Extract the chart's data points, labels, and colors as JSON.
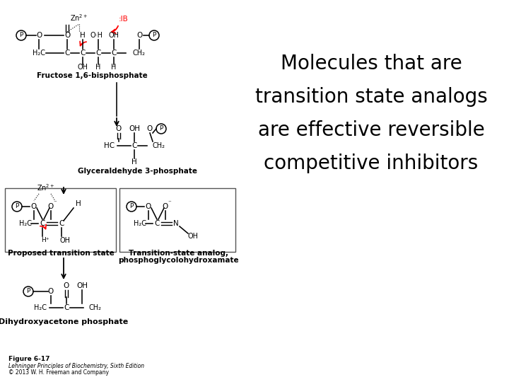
{
  "background_color": "#ffffff",
  "title_lines": [
    "Molecules that are",
    "transition state analogs",
    "are effective reversible",
    "competitive inhibitors"
  ],
  "title_fontsize": 20,
  "title_color": "#000000",
  "figure_label": "Figure 6-17",
  "citation_line1": "Lehninger Principles of Biochemistry, Sixth Edition",
  "citation_line2": "© 2013 W. H. Freeman and Company",
  "figsize": [
    7.2,
    5.4
  ],
  "dpi": 100,
  "fructose_label": "Fructose 1,6-bisphosphate",
  "glyceraldehyde_label": "Glyceraldehyde 3-phosphate",
  "transition_label": "Proposed transition state",
  "analog_label1": "Transition-state analog,",
  "analog_label2": "phosphoglycolohydroxamate",
  "dihydroxy_label": "Dihydroxyacetone phosphate"
}
